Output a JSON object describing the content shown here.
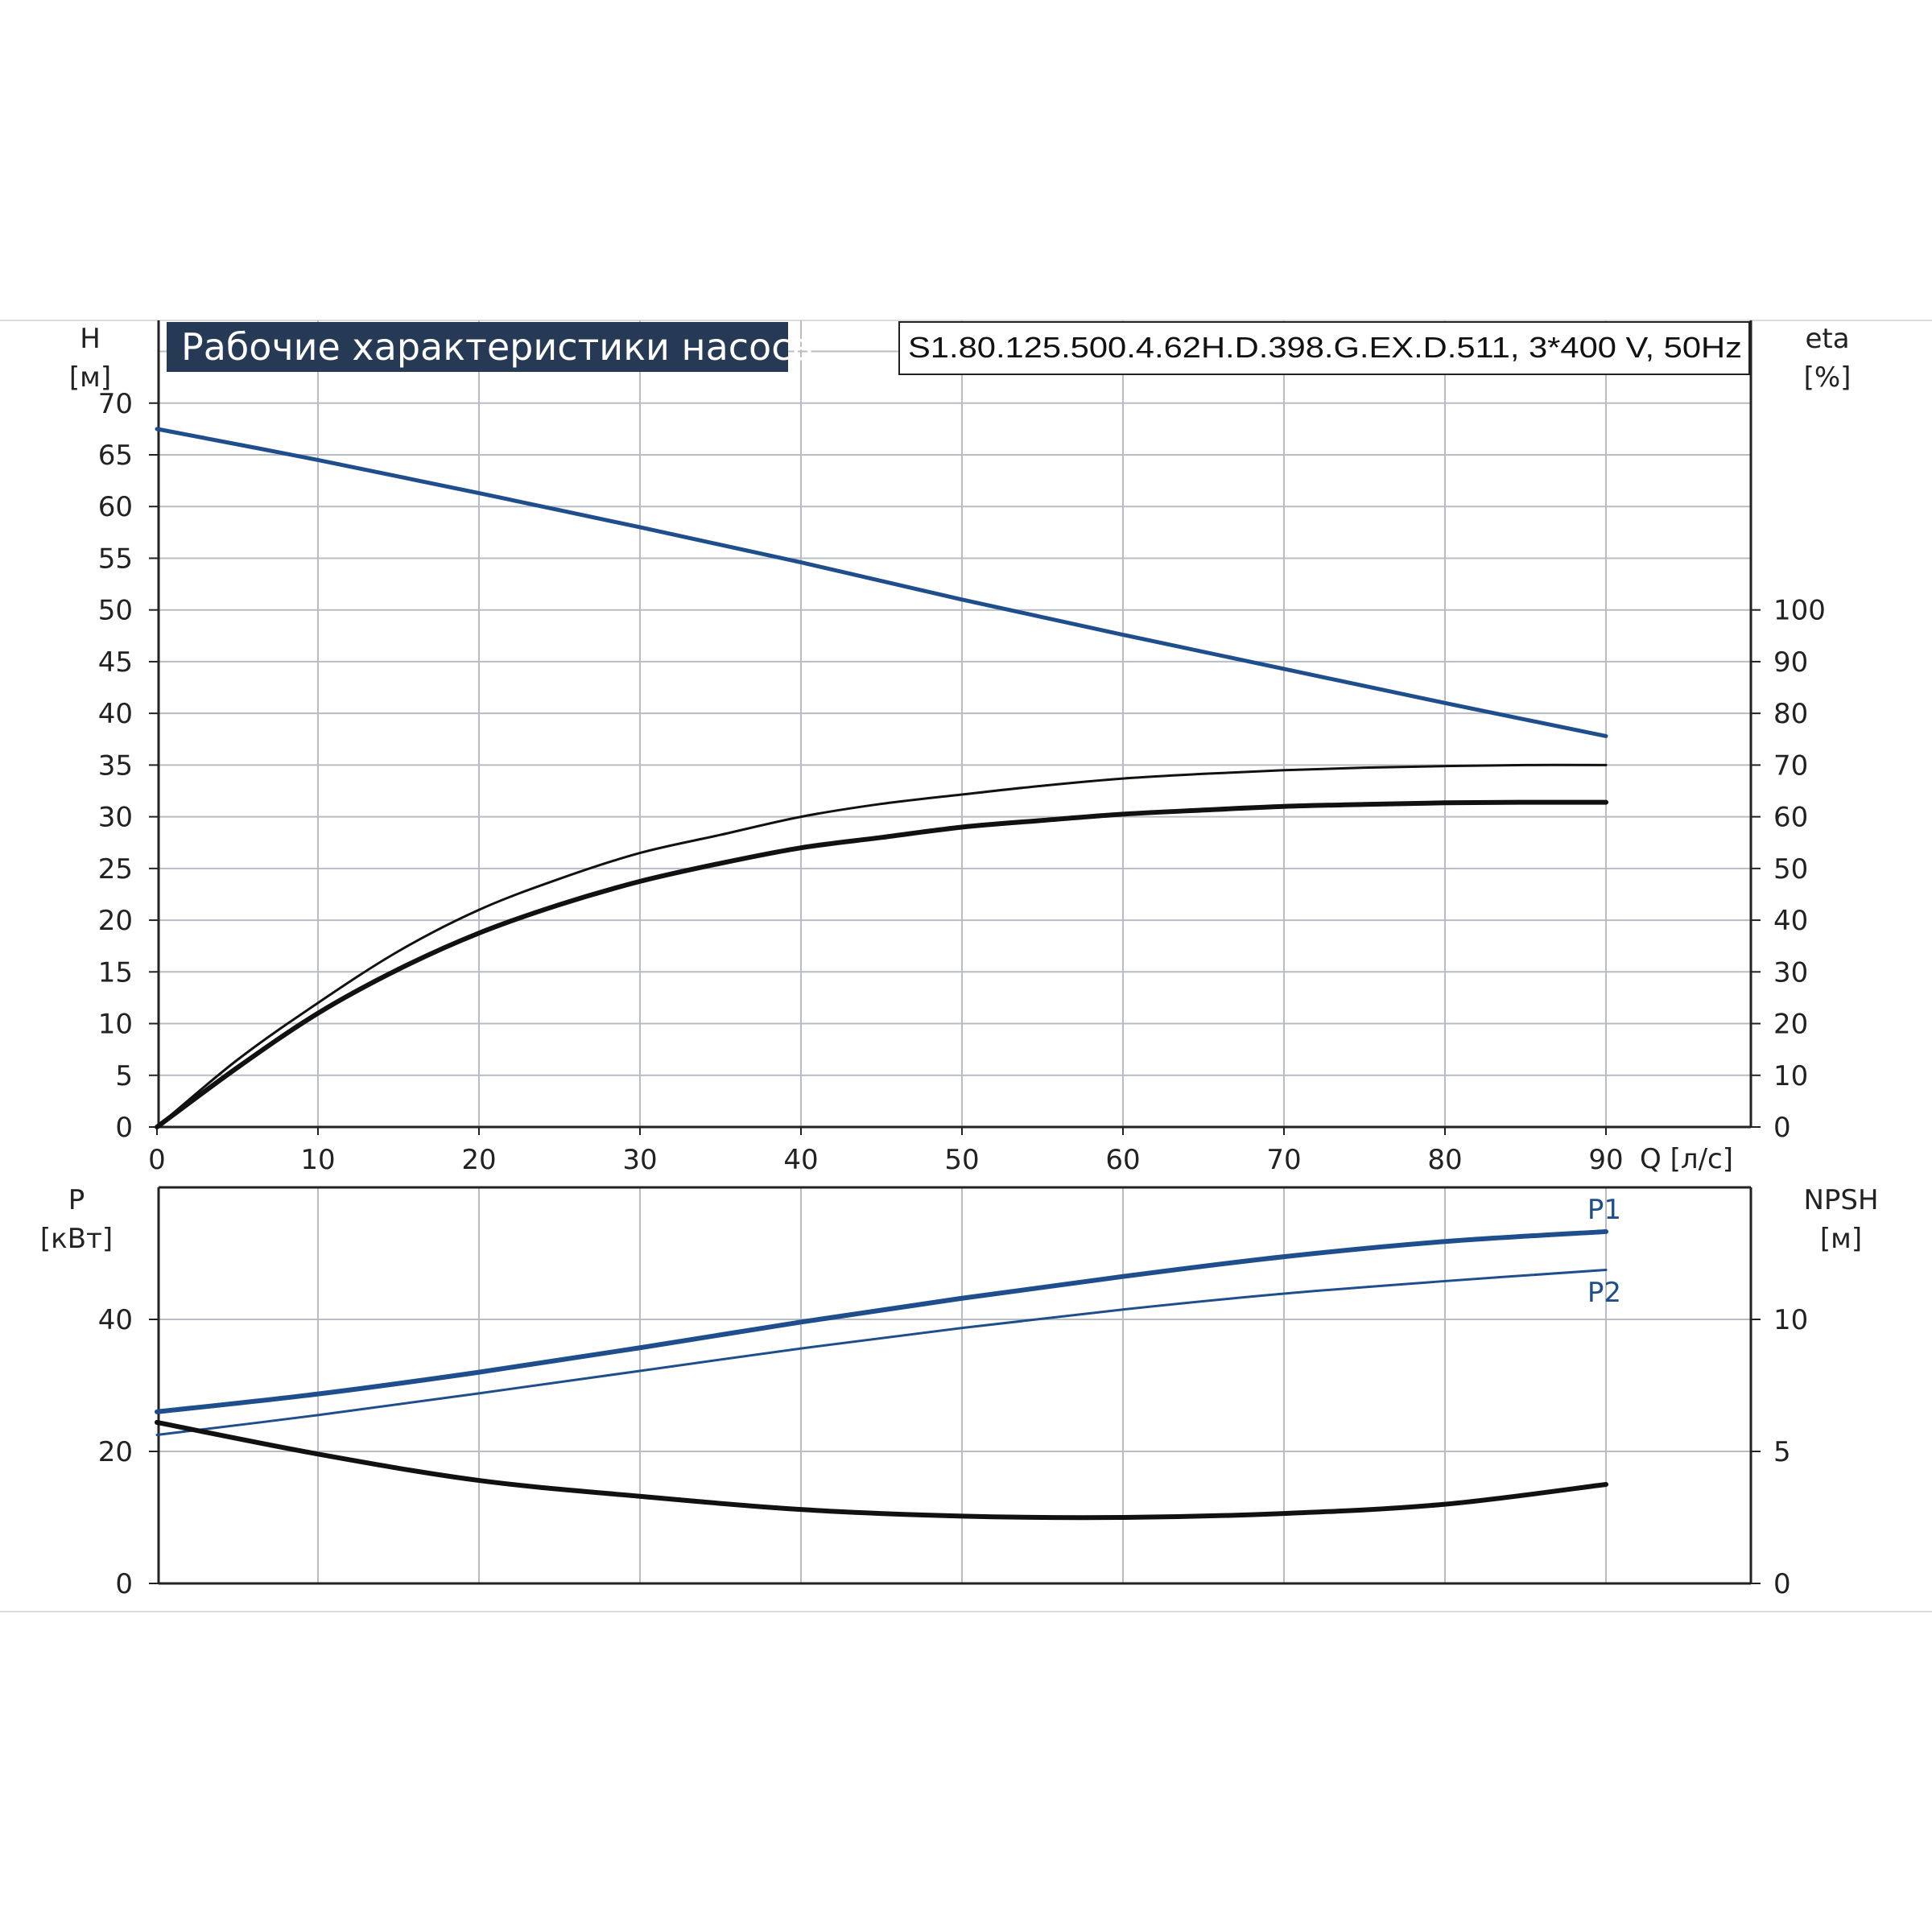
{
  "colors": {
    "blue": "#1f4e8c",
    "black": "#111111",
    "grid": "#b8bcc4",
    "title_bg": "#263a55"
  },
  "header": {
    "title": "Рабочие характеристики насоса",
    "model": "S1.80.125.500.4.62H.D.398.G.EX.D.511, 3*400 V, 50Hz"
  },
  "chart_data": [
    {
      "type": "line",
      "name": "head-efficiency",
      "ylabel_left": "H",
      "ylabel_left_unit": "[м]",
      "ylabel_right": "eta",
      "ylabel_right_unit": "[%]",
      "xlabel": "Q [л/с]",
      "xlim": [
        0,
        99
      ],
      "xticks": [
        0,
        10,
        20,
        30,
        40,
        50,
        60,
        70,
        80,
        90
      ],
      "ylim_left": [
        0,
        78
      ],
      "yticks_left": [
        0,
        5,
        10,
        15,
        20,
        25,
        30,
        35,
        40,
        45,
        50,
        55,
        60,
        65,
        70
      ],
      "ylim_right": [
        0,
        156
      ],
      "yticks_right": [
        0,
        10,
        20,
        30,
        40,
        50,
        60,
        70,
        80,
        90,
        100
      ],
      "grid": true,
      "series": [
        {
          "key": "H",
          "axis": "left",
          "color": "#1f4e8c",
          "width": 5,
          "x": [
            0,
            10,
            20,
            30,
            40,
            50,
            60,
            70,
            80,
            90
          ],
          "y": [
            67.5,
            64.5,
            61.3,
            58.0,
            54.6,
            51.0,
            47.6,
            44.3,
            41.0,
            37.8
          ]
        },
        {
          "key": "eta_thin",
          "axis": "right",
          "color": "#111111",
          "width": 3,
          "x": [
            0,
            5,
            10,
            15,
            20,
            25,
            30,
            35,
            40,
            45,
            50,
            55,
            60,
            65,
            70,
            75,
            80,
            85,
            90
          ],
          "y": [
            0,
            13,
            24,
            34,
            42,
            48,
            53,
            56.5,
            60,
            62.5,
            64.3,
            66,
            67.4,
            68.3,
            69,
            69.5,
            69.8,
            70,
            70
          ]
        },
        {
          "key": "eta_thick",
          "axis": "right",
          "color": "#111111",
          "width": 6,
          "x": [
            0,
            5,
            10,
            15,
            20,
            25,
            30,
            35,
            40,
            45,
            50,
            55,
            60,
            65,
            70,
            75,
            80,
            85,
            90
          ],
          "y": [
            0,
            11.5,
            22,
            30.5,
            37.5,
            43,
            47.5,
            51,
            54,
            56,
            58,
            59.3,
            60.5,
            61.3,
            62,
            62.4,
            62.7,
            62.8,
            62.8
          ]
        }
      ]
    },
    {
      "type": "line",
      "name": "power-npsh",
      "ylabel_left": "P",
      "ylabel_left_unit": "[кВт]",
      "ylabel_right": "NPSH",
      "ylabel_right_unit": "[м]",
      "xlim": [
        0,
        99
      ],
      "ylim_left": [
        0,
        60
      ],
      "yticks_left": [
        0,
        20,
        40
      ],
      "ylim_right": [
        0,
        15
      ],
      "yticks_right": [
        0,
        5,
        10
      ],
      "grid": true,
      "series": [
        {
          "key": "P1",
          "name": "P1",
          "axis": "left",
          "color": "#1f4e8c",
          "width": 6,
          "x": [
            0,
            10,
            20,
            30,
            40,
            50,
            60,
            70,
            80,
            90
          ],
          "y": [
            26.0,
            28.7,
            32.0,
            35.7,
            39.6,
            43.2,
            46.5,
            49.5,
            51.8,
            53.3
          ]
        },
        {
          "key": "P2",
          "name": "P2",
          "axis": "left",
          "color": "#1f4e8c",
          "width": 3,
          "x": [
            0,
            10,
            20,
            30,
            40,
            50,
            60,
            70,
            80,
            90
          ],
          "y": [
            22.5,
            25.5,
            28.8,
            32.2,
            35.6,
            38.7,
            41.5,
            43.9,
            45.8,
            47.5
          ]
        },
        {
          "key": "NPSH",
          "axis": "right",
          "color": "#111111",
          "width": 6,
          "x": [
            0,
            10,
            20,
            30,
            40,
            50,
            60,
            70,
            80,
            90
          ],
          "y": [
            6.1,
            4.9,
            3.9,
            3.3,
            2.8,
            2.55,
            2.5,
            2.65,
            3.0,
            3.75
          ]
        }
      ]
    }
  ]
}
